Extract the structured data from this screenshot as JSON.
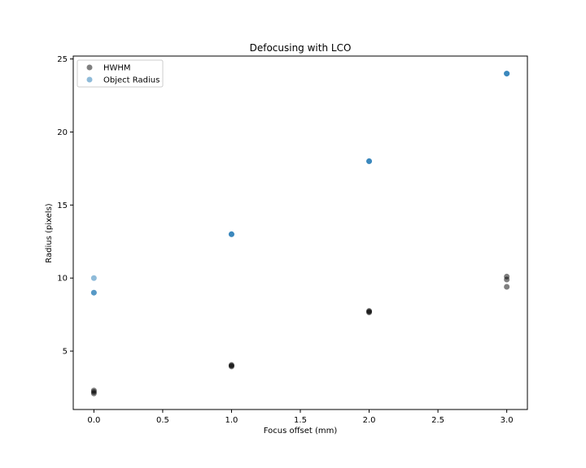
{
  "chart_data": {
    "type": "scatter",
    "title": "Defocusing with LCO",
    "xlabel": "Focus offset (mm)",
    "ylabel": "Radius (pixels)",
    "xlim": [
      -0.15,
      3.15
    ],
    "ylim": [
      1.0,
      25.2
    ],
    "xticks": [
      0.0,
      0.5,
      1.0,
      1.5,
      2.0,
      2.5,
      3.0
    ],
    "xtick_labels": [
      "0.0",
      "0.5",
      "1.0",
      "1.5",
      "2.0",
      "2.5",
      "3.0"
    ],
    "yticks": [
      5,
      10,
      15,
      20,
      25
    ],
    "ytick_labels": [
      "5",
      "10",
      "15",
      "20",
      "25"
    ],
    "grid": false,
    "legend_position": "upper-left",
    "series": [
      {
        "name": "HWHM",
        "color": "#000000",
        "alpha": 0.5,
        "points": [
          {
            "x": 0.0,
            "y": 2.1
          },
          {
            "x": 0.0,
            "y": 2.2
          },
          {
            "x": 0.0,
            "y": 2.3
          },
          {
            "x": 1.0,
            "y": 3.95
          },
          {
            "x": 1.0,
            "y": 4.0
          },
          {
            "x": 1.0,
            "y": 4.05
          },
          {
            "x": 2.0,
            "y": 7.65
          },
          {
            "x": 2.0,
            "y": 7.7
          },
          {
            "x": 2.0,
            "y": 7.75
          },
          {
            "x": 3.0,
            "y": 9.4
          },
          {
            "x": 3.0,
            "y": 9.9
          },
          {
            "x": 3.0,
            "y": 10.1
          }
        ]
      },
      {
        "name": "Object Radius",
        "color": "#1f77b4",
        "alpha": 0.5,
        "points": [
          {
            "x": 0.0,
            "y": 9.0
          },
          {
            "x": 0.0,
            "y": 9.0
          },
          {
            "x": 0.0,
            "y": 10.0
          },
          {
            "x": 1.0,
            "y": 13.0
          },
          {
            "x": 1.0,
            "y": 13.0
          },
          {
            "x": 1.0,
            "y": 13.0
          },
          {
            "x": 2.0,
            "y": 18.0
          },
          {
            "x": 2.0,
            "y": 18.0
          },
          {
            "x": 2.0,
            "y": 18.0
          },
          {
            "x": 3.0,
            "y": 24.0
          },
          {
            "x": 3.0,
            "y": 24.0
          },
          {
            "x": 3.0,
            "y": 24.0
          }
        ]
      }
    ]
  }
}
